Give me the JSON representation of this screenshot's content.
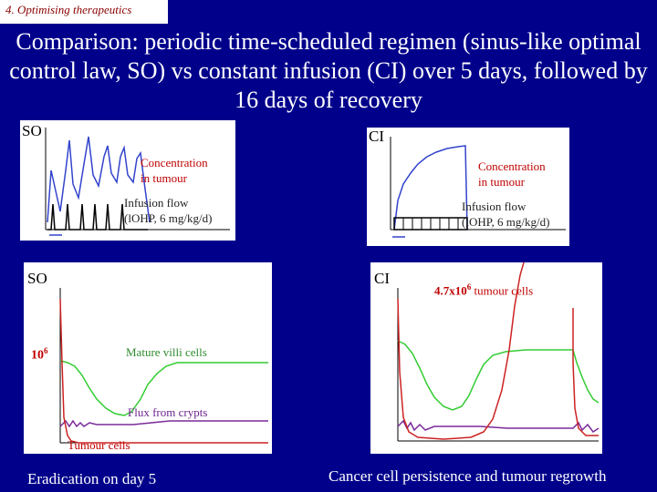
{
  "header": {
    "section_label": "4. Optimising therapeutics",
    "title": "Comparison: periodic time-scheduled regimen (sinus-like optimal control law, SO) vs constant infusion (CI) over 5 days, followed by 16 days of recovery"
  },
  "top_left_plot": {
    "corner_label": "SO",
    "concentration_label": "Concentration\nin tumour",
    "infusion_label": "Infusion flow\n(lOHP, 6 mg/kg/d)"
  },
  "top_right_plot": {
    "corner_label": "CI",
    "concentration_label": "Concentration\nin tumour",
    "infusion_label": "Infusion flow\n(lOHP, 6 mg/kg/d)"
  },
  "bottom_left_plot": {
    "corner_label": "SO",
    "y_tick_label": "10",
    "y_tick_exp": "6",
    "mature_label": "Mature villi cells",
    "flux_label": "Flux from crypts",
    "tumour_label": "Tumour cells"
  },
  "bottom_right_plot": {
    "corner_label": "CI",
    "tumour_count_prefix": "4.7x10",
    "tumour_count_exp": "6",
    "tumour_count_suffix": " tumour cells"
  },
  "captions": {
    "left": "Eradication on day 5",
    "right": "Cancer cell persistence and tumour regrowth"
  },
  "colors": {
    "background": "#00008B",
    "concentration_curve": "#3344CC",
    "infusion_curve": "#000000",
    "mature_villi": "#33CC33",
    "flux_from_crypts": "#7B2A9A",
    "tumour_cells": "#CC2222"
  }
}
